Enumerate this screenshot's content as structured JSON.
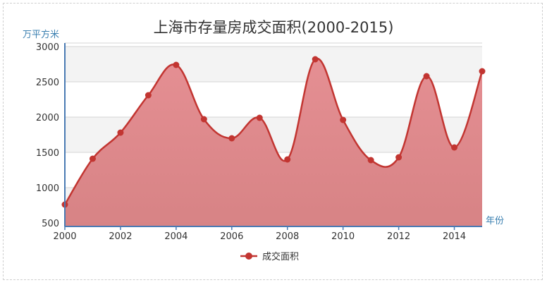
{
  "chart_data": {
    "type": "area",
    "title": "上海市存量房成交面积(2000-2015)",
    "ylabel": "万平方米",
    "xlabel": "年份",
    "x": [
      2000,
      2001,
      2002,
      2003,
      2004,
      2005,
      2006,
      2007,
      2008,
      2009,
      2010,
      2011,
      2012,
      2013,
      2014,
      2015
    ],
    "x_ticks": [
      2000,
      2002,
      2004,
      2006,
      2008,
      2010,
      2012,
      2014
    ],
    "y_ticks": [
      500,
      1000,
      1500,
      2000,
      2500,
      3000
    ],
    "xlim": [
      2000,
      2015
    ],
    "ylim": [
      450,
      3050
    ],
    "grid": true,
    "legend_position": "bottom",
    "series": [
      {
        "name": "成交面积",
        "color": "#c23531",
        "values": [
          760,
          1410,
          1780,
          2310,
          2740,
          1970,
          1700,
          1990,
          1400,
          2820,
          1960,
          1390,
          1430,
          2580,
          1570,
          2650
        ]
      }
    ]
  }
}
